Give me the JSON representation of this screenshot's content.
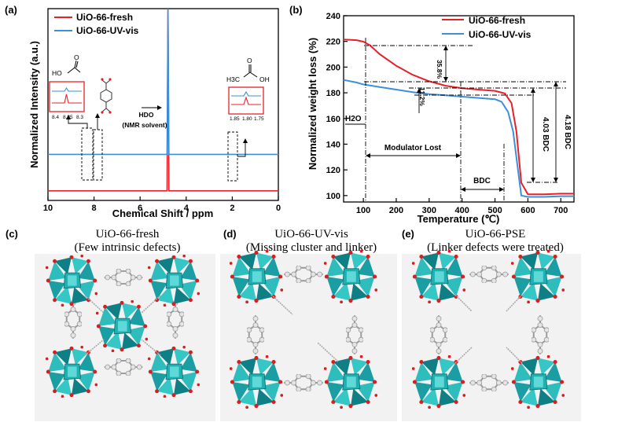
{
  "colors": {
    "fresh": "#e8202a",
    "uvvis": "#3d8fd8",
    "metal": "#26b3b3",
    "oxygen": "#d81e1e"
  },
  "chart_data": [
    {
      "panel": "(a)",
      "type": "line",
      "title": "",
      "xlabel": "Chemical Shift / ppm",
      "ylabel": "Normalized Intensity (a.u.)",
      "xlim": [
        10,
        0
      ],
      "xticks": [
        "10",
        "8",
        "6",
        "4",
        "2",
        "0"
      ],
      "legend": [
        "UiO-66-fresh",
        "UiO-66-UV-vis"
      ],
      "legend_position": "top-left",
      "series": [
        {
          "name": "UiO-66-fresh",
          "baseline_level": 0.05,
          "peaks": [
            {
              "x": 4.79,
              "height": 0.95
            }
          ]
        },
        {
          "name": "UiO-66-UV-vis",
          "baseline_level": 0.24,
          "peaks": [
            {
              "x": 4.79,
              "height": 0.76
            }
          ]
        }
      ],
      "annotations": {
        "hdo": "HDO",
        "solvent": "(NMR solvent)",
        "formic_label": "HO",
        "acetic_h3c": "H3C",
        "acetic_oh": "OH",
        "inset_left_ticks": [
          "8.4",
          "8.35",
          "8.3"
        ],
        "inset_right_ticks": [
          "1.85",
          "1.80",
          "1.75"
        ]
      }
    },
    {
      "panel": "(b)",
      "type": "line",
      "title": "",
      "xlabel": "Temperature (℃)",
      "ylabel": "Normalized weight loss (%)",
      "xlim": [
        40,
        740
      ],
      "ylim": [
        95,
        240
      ],
      "xticks": [
        100,
        200,
        300,
        400,
        500,
        600,
        700
      ],
      "yticks": [
        100,
        120,
        140,
        160,
        180,
        200,
        220,
        240
      ],
      "legend": [
        "UiO-66-fresh",
        "UiO-66-UV-vis"
      ],
      "legend_position": "top-right",
      "series": [
        {
          "name": "UiO-66-fresh",
          "x": [
            40,
            80,
            100,
            120,
            150,
            200,
            250,
            300,
            350,
            400,
            450,
            500,
            530,
            550,
            565,
            580,
            600,
            650,
            700,
            740
          ],
          "y": [
            221.5,
            221,
            219.8,
            217,
            210,
            201,
            194,
            189,
            185.5,
            183.5,
            182.5,
            181.5,
            179.5,
            172,
            150,
            110,
            101,
            101,
            101.5,
            101.5
          ]
        },
        {
          "name": "UiO-66-UV-vis",
          "x": [
            40,
            80,
            100,
            150,
            200,
            250,
            300,
            350,
            400,
            450,
            500,
            520,
            540,
            555,
            570,
            580,
            600,
            650,
            700,
            740
          ],
          "y": [
            190,
            188,
            186.5,
            184.5,
            182.5,
            180.5,
            179,
            178,
            177,
            176,
            175,
            173,
            165,
            150,
            120,
            100,
            99,
            99,
            99.5,
            99.5
          ]
        }
      ],
      "annotations": {
        "pct1": "35.8%",
        "pct2": "11.2%",
        "h2o": "H2O",
        "modulator": "Modulator Lost",
        "bdc": "BDC",
        "bdc1": "4.03 BDC",
        "bdc2": "4.18 BDC"
      }
    }
  ],
  "structures": [
    {
      "panel": "(c)",
      "title": "UiO-66-fresh",
      "subtitle": "(Few intrinsic defects)"
    },
    {
      "panel": "(d)",
      "title": "UiO-66-UV-vis",
      "subtitle": "(Missing cluster and linker)"
    },
    {
      "panel": "(e)",
      "title": "UiO-66-PSE",
      "subtitle": "(Linker defects were treated)"
    }
  ]
}
